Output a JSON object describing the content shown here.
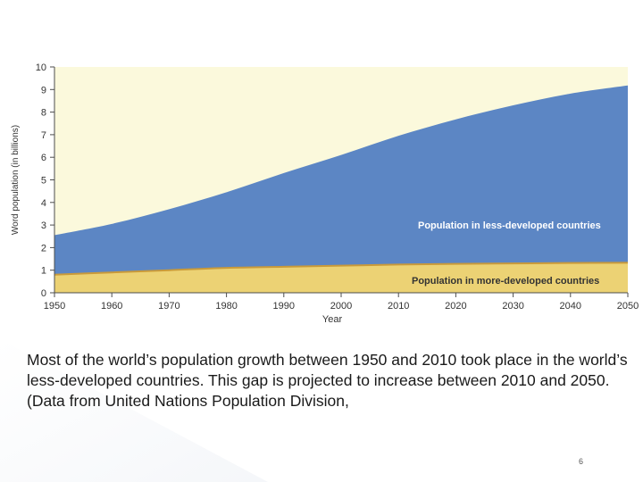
{
  "colors": {
    "plot_background": "#fbf9dc",
    "less_developed": "#5c86c4",
    "more_developed": "#ecd274",
    "band_divider": "#c99a3a",
    "axis": "#4d4d4d",
    "area_label_text": "#ffffff",
    "area_label_text_dark": "#333333"
  },
  "chart_data": {
    "type": "area",
    "stacked": true,
    "title": "",
    "xlabel": "Year",
    "ylabel": "Word population (in billions)",
    "xlim": [
      1950,
      2050
    ],
    "ylim": [
      0,
      10
    ],
    "x_ticks": [
      1950,
      1960,
      1970,
      1980,
      1990,
      2000,
      2010,
      2020,
      2030,
      2040,
      2050
    ],
    "y_ticks": [
      0,
      1,
      2,
      3,
      4,
      5,
      6,
      7,
      8,
      9,
      10
    ],
    "grid": false,
    "x": [
      1950,
      1960,
      1970,
      1980,
      1990,
      2000,
      2010,
      2020,
      2030,
      2040,
      2050
    ],
    "series": [
      {
        "name": "Population in more-developed countries",
        "values": [
          0.8,
          0.9,
          1.0,
          1.1,
          1.15,
          1.2,
          1.25,
          1.28,
          1.3,
          1.32,
          1.33
        ]
      },
      {
        "name": "Population in less-developed countries",
        "values": [
          1.75,
          2.15,
          2.7,
          3.35,
          4.15,
          4.9,
          5.7,
          6.4,
          7.0,
          7.5,
          7.85
        ]
      }
    ],
    "totals": [
      2.55,
      3.05,
      3.7,
      4.45,
      5.3,
      6.1,
      6.95,
      7.68,
      8.3,
      8.82,
      9.18
    ]
  },
  "caption": "Most of the world’s population growth between 1950 and 2010 took place in the world’s less-developed countries. This gap is projected to increase between 2010 and 2050. (Data from United Nations Population Division,",
  "slide_number": "6"
}
